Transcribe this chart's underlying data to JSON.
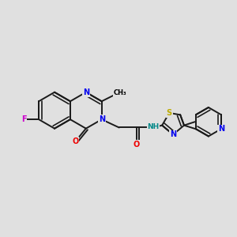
{
  "background_color": "#e0e0e0",
  "bond_color": "#1a1a1a",
  "bond_width": 1.4,
  "atom_colors": {
    "C": "#000000",
    "N": "#0000ee",
    "O": "#ee0000",
    "F": "#cc00cc",
    "S": "#bbaa00",
    "NH": "#008888"
  },
  "font_size": 7.0,
  "fig_width": 3.0,
  "fig_height": 3.0,
  "dpi": 100
}
